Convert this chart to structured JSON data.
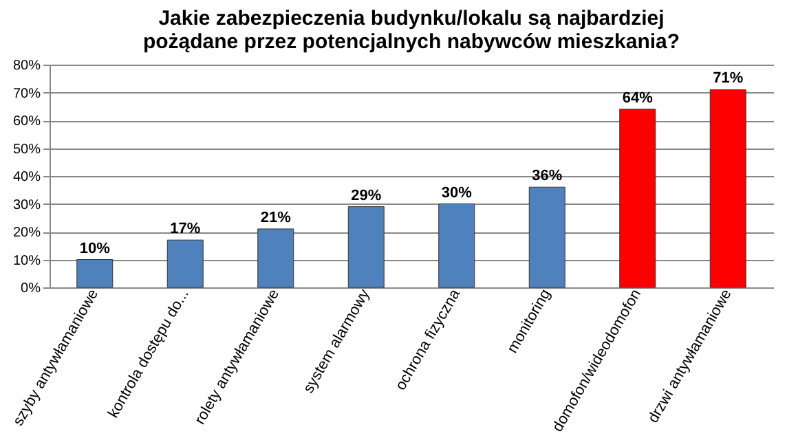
{
  "chart_data": {
    "type": "bar",
    "title": "Jakie zabezpieczenia budynku/lokalu są najbardziej\npożądane przez potencjalnych nabywców mieszkania?",
    "categories": [
      "szyby antywłamaniowe",
      "kontrola dostępu do...",
      "rolety antywłamaniowe",
      "system alarmowy",
      "ochrona fizyczna",
      "monitoring",
      "domofon/wideodomofon",
      "drzwi antywłamaniowe"
    ],
    "values": [
      10,
      17,
      21,
      29,
      30,
      36,
      64,
      71
    ],
    "colors": [
      "#4f81bd",
      "#4f81bd",
      "#4f81bd",
      "#4f81bd",
      "#4f81bd",
      "#4f81bd",
      "#ff0000",
      "#ff0000"
    ],
    "value_labels": [
      "10%",
      "17%",
      "21%",
      "29%",
      "30%",
      "36%",
      "64%",
      "71%"
    ],
    "ylim": [
      0,
      80
    ],
    "yticks": [
      {
        "value": 0,
        "label": "0%"
      },
      {
        "value": 10,
        "label": "10%"
      },
      {
        "value": 20,
        "label": "20%"
      },
      {
        "value": 30,
        "label": "30%"
      },
      {
        "value": 40,
        "label": "40%"
      },
      {
        "value": 50,
        "label": "50%"
      },
      {
        "value": 60,
        "label": "60%"
      },
      {
        "value": 70,
        "label": "70%"
      },
      {
        "value": 80,
        "label": "80%"
      }
    ],
    "grid": "y"
  }
}
